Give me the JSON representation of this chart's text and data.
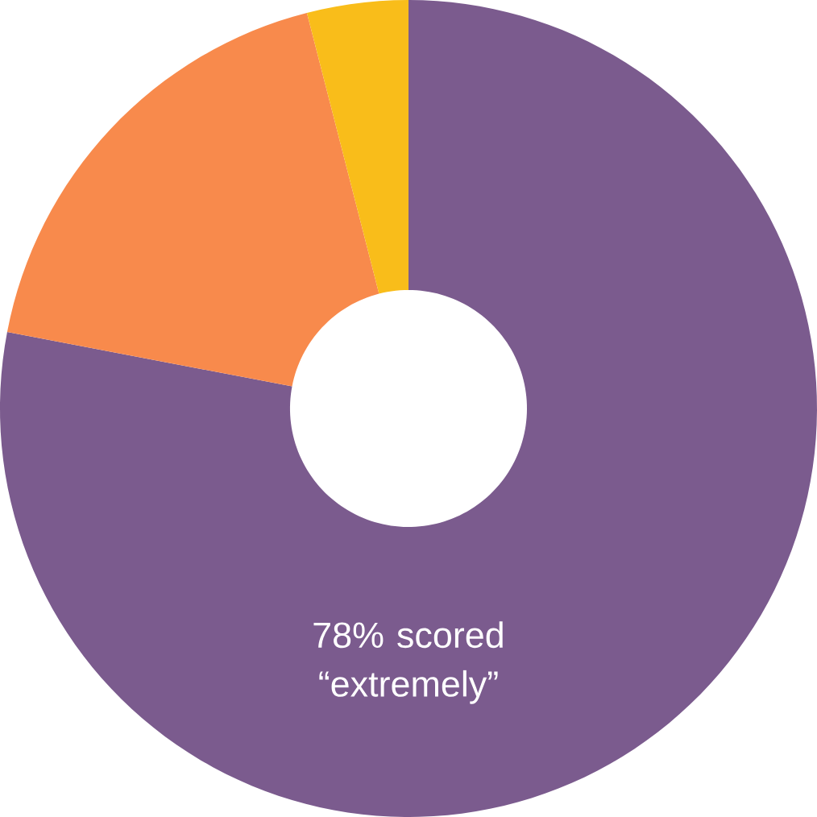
{
  "chart_data": {
    "type": "donut",
    "categories": [
      null,
      null,
      null
    ],
    "values": [
      78,
      18,
      4
    ],
    "colors": [
      "#7b5b8e",
      "#f88a4c",
      "#f9bd1a"
    ],
    "annotations": [
      "78% scored “extremely”"
    ]
  }
}
